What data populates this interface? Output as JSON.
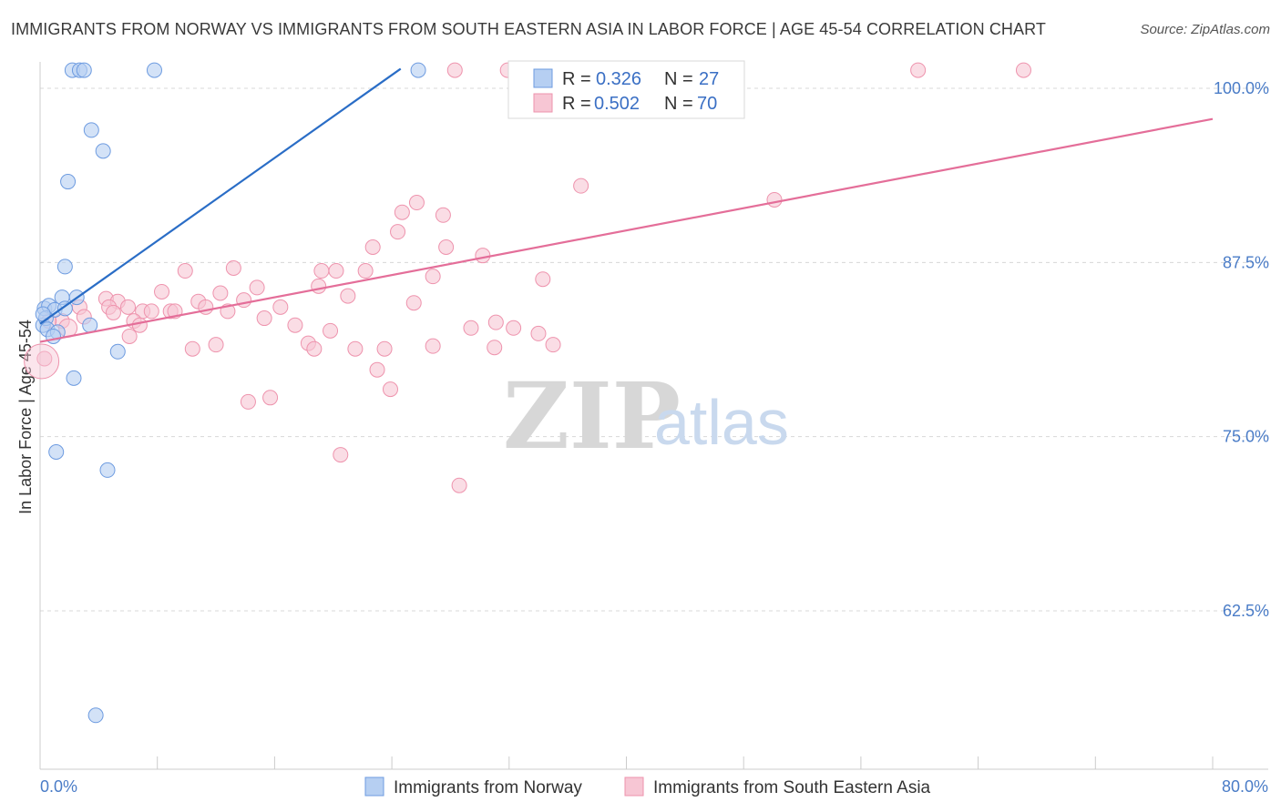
{
  "header": {
    "title": "IMMIGRANTS FROM NORWAY VS IMMIGRANTS FROM SOUTH EASTERN ASIA IN LABOR FORCE | AGE 45-54 CORRELATION CHART",
    "source": "Source: ZipAtlas.com"
  },
  "watermark": {
    "zip": "ZIP",
    "atlas": "atlas"
  },
  "colors": {
    "norway_fill": "#b6cff2",
    "norway_stroke": "#6d9be0",
    "norway_line": "#2a6dc6",
    "sea_fill": "#f7c6d4",
    "sea_stroke": "#ee93ad",
    "sea_line": "#e46e99",
    "grid": "#d8d8d8",
    "axis_text": "#4a7cc7"
  },
  "legend": {
    "norway": {
      "r_label": "R =",
      "r_value": "0.326",
      "n_label": "N =",
      "n_value": "27"
    },
    "sea": {
      "r_label": "R =",
      "r_value": "0.502",
      "n_label": "N =",
      "n_value": "70"
    }
  },
  "chart_data": {
    "type": "scatter",
    "title": "IMMIGRANTS FROM NORWAY VS IMMIGRANTS FROM SOUTH EASTERN ASIA IN LABOR FORCE | AGE 45-54 CORRELATION CHART",
    "xlabel": "",
    "ylabel": "In Labor Force | Age 45-54",
    "xlim": [
      0,
      80
    ],
    "ylim": [
      50,
      101.5
    ],
    "x_tick_labels": [
      "0.0%",
      "80.0%"
    ],
    "y_ticks": [
      62.5,
      75.0,
      87.5,
      100.0
    ],
    "y_tick_labels": [
      "62.5%",
      "75.0%",
      "87.5%",
      "100.0%"
    ],
    "grid": true,
    "series": [
      {
        "name": "Immigrants from Norway",
        "r": 0.326,
        "n": 27,
        "trend": {
          "x": [
            0.0,
            24.6
          ],
          "y": [
            83.1,
            101.4
          ]
        },
        "points": [
          {
            "x": 2.2,
            "y": 101.3
          },
          {
            "x": 2.7,
            "y": 101.3
          },
          {
            "x": 3.0,
            "y": 101.3
          },
          {
            "x": 7.8,
            "y": 101.3
          },
          {
            "x": 25.8,
            "y": 101.3
          },
          {
            "x": 3.5,
            "y": 97.0
          },
          {
            "x": 4.3,
            "y": 95.5
          },
          {
            "x": 1.9,
            "y": 93.3
          },
          {
            "x": 1.7,
            "y": 87.2
          },
          {
            "x": 0.3,
            "y": 84.2
          },
          {
            "x": 0.6,
            "y": 84.4
          },
          {
            "x": 1.0,
            "y": 84.1
          },
          {
            "x": 1.5,
            "y": 85.0
          },
          {
            "x": 1.7,
            "y": 84.2
          },
          {
            "x": 2.5,
            "y": 85.0
          },
          {
            "x": 0.2,
            "y": 83.0
          },
          {
            "x": 0.4,
            "y": 83.5
          },
          {
            "x": 0.5,
            "y": 82.7
          },
          {
            "x": 1.2,
            "y": 82.5
          },
          {
            "x": 0.9,
            "y": 82.2
          },
          {
            "x": 3.4,
            "y": 83.0
          },
          {
            "x": 5.3,
            "y": 81.1
          },
          {
            "x": 2.3,
            "y": 79.2
          },
          {
            "x": 1.1,
            "y": 73.9
          },
          {
            "x": 4.6,
            "y": 72.6
          },
          {
            "x": 3.8,
            "y": 55.0
          },
          {
            "x": 0.2,
            "y": 83.8
          }
        ]
      },
      {
        "name": "Immigrants from South Eastern Asia",
        "r": 0.502,
        "n": 70,
        "trend": {
          "x": [
            0.0,
            80.0
          ],
          "y": [
            81.8,
            97.8
          ]
        },
        "points": [
          {
            "x": 28.3,
            "y": 101.3
          },
          {
            "x": 31.9,
            "y": 101.3
          },
          {
            "x": 59.9,
            "y": 101.3
          },
          {
            "x": 67.1,
            "y": 101.3
          },
          {
            "x": 36.9,
            "y": 93.0
          },
          {
            "x": 50.1,
            "y": 92.0
          },
          {
            "x": 25.7,
            "y": 91.8
          },
          {
            "x": 24.7,
            "y": 91.1
          },
          {
            "x": 27.5,
            "y": 90.9
          },
          {
            "x": 24.4,
            "y": 89.7
          },
          {
            "x": 22.7,
            "y": 88.6
          },
          {
            "x": 27.7,
            "y": 88.6
          },
          {
            "x": 30.2,
            "y": 88.0
          },
          {
            "x": 13.2,
            "y": 87.1
          },
          {
            "x": 19.2,
            "y": 86.9
          },
          {
            "x": 20.2,
            "y": 86.9
          },
          {
            "x": 22.2,
            "y": 86.9
          },
          {
            "x": 9.9,
            "y": 86.9
          },
          {
            "x": 26.8,
            "y": 86.5
          },
          {
            "x": 34.3,
            "y": 86.3
          },
          {
            "x": 19.0,
            "y": 85.8
          },
          {
            "x": 14.8,
            "y": 85.7
          },
          {
            "x": 8.3,
            "y": 85.4
          },
          {
            "x": 12.3,
            "y": 85.3
          },
          {
            "x": 21.0,
            "y": 85.1
          },
          {
            "x": 4.5,
            "y": 84.9
          },
          {
            "x": 5.3,
            "y": 84.7
          },
          {
            "x": 13.9,
            "y": 84.8
          },
          {
            "x": 10.8,
            "y": 84.7
          },
          {
            "x": 25.5,
            "y": 84.6
          },
          {
            "x": 4.7,
            "y": 84.3
          },
          {
            "x": 6.0,
            "y": 84.3
          },
          {
            "x": 11.3,
            "y": 84.3
          },
          {
            "x": 16.4,
            "y": 84.3
          },
          {
            "x": 7.0,
            "y": 84.0
          },
          {
            "x": 7.6,
            "y": 84.0
          },
          {
            "x": 8.9,
            "y": 84.0
          },
          {
            "x": 9.2,
            "y": 84.0
          },
          {
            "x": 12.8,
            "y": 84.0
          },
          {
            "x": 2.7,
            "y": 84.3
          },
          {
            "x": 3.0,
            "y": 83.6
          },
          {
            "x": 5.0,
            "y": 83.9
          },
          {
            "x": 6.4,
            "y": 83.3
          },
          {
            "x": 15.3,
            "y": 83.5
          },
          {
            "x": 1.5,
            "y": 83.3
          },
          {
            "x": 0.6,
            "y": 83.3
          },
          {
            "x": 6.8,
            "y": 83.0
          },
          {
            "x": 31.1,
            "y": 83.2
          },
          {
            "x": 17.4,
            "y": 83.0
          },
          {
            "x": 29.4,
            "y": 82.8
          },
          {
            "x": 32.3,
            "y": 82.8
          },
          {
            "x": 19.8,
            "y": 82.6
          },
          {
            "x": 34.0,
            "y": 82.4
          },
          {
            "x": 6.1,
            "y": 82.2
          },
          {
            "x": 18.3,
            "y": 81.7
          },
          {
            "x": 12.0,
            "y": 81.6
          },
          {
            "x": 35.0,
            "y": 81.6
          },
          {
            "x": 10.4,
            "y": 81.3
          },
          {
            "x": 23.5,
            "y": 81.3
          },
          {
            "x": 18.7,
            "y": 81.3
          },
          {
            "x": 21.5,
            "y": 81.3
          },
          {
            "x": 31.0,
            "y": 81.4
          },
          {
            "x": 26.8,
            "y": 81.5
          },
          {
            "x": 0.3,
            "y": 80.6
          },
          {
            "x": 23.0,
            "y": 79.8
          },
          {
            "x": 23.9,
            "y": 78.4
          },
          {
            "x": 14.2,
            "y": 77.5
          },
          {
            "x": 15.7,
            "y": 77.8
          },
          {
            "x": 20.5,
            "y": 73.7
          },
          {
            "x": 28.6,
            "y": 71.5
          }
        ]
      }
    ],
    "legend": [
      "Immigrants from Norway",
      "Immigrants from South Eastern Asia"
    ]
  }
}
